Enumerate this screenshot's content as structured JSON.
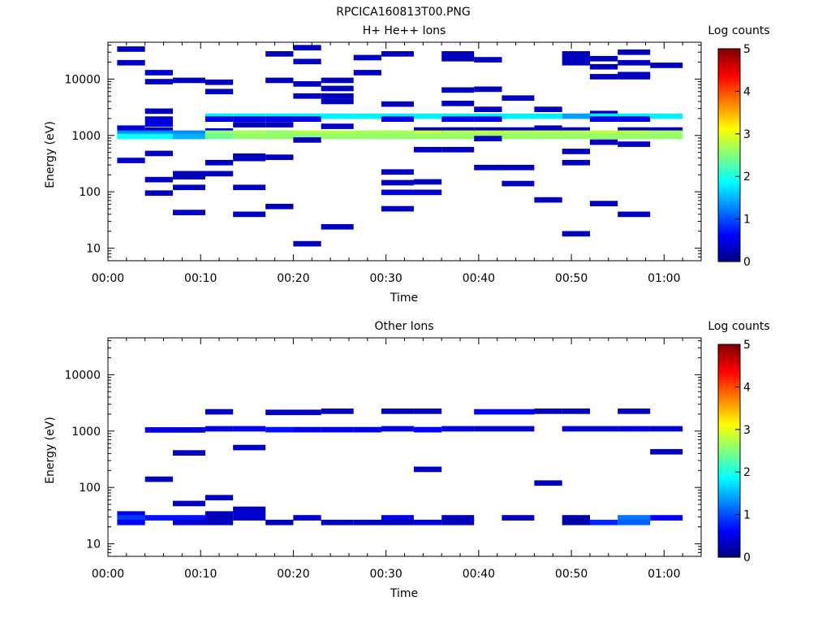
{
  "page_title": "RPCICA160813T00.PNG",
  "chart_data": [
    {
      "type": "heatmap",
      "title": "H+ He++ Ions",
      "xlabel": "Time",
      "ylabel": "Energy (eV)",
      "xlim_min": [
        0,
        64
      ],
      "ylim": [
        6,
        45000
      ],
      "yscale": "log",
      "xtick_labels": [
        "00:00",
        "00:10",
        "00:20",
        "00:30",
        "00:40",
        "00:50",
        "01:00"
      ],
      "xtick_values_min": [
        0,
        10,
        20,
        30,
        40,
        50,
        60
      ],
      "ytick_labels": [
        "10",
        "100",
        "1000",
        "10000"
      ],
      "ytick_values": [
        10,
        100,
        1000,
        10000
      ],
      "colorbar": {
        "label": "Log counts",
        "range": [
          0,
          5
        ],
        "tick_labels": [
          "0",
          "1",
          "2",
          "3",
          "4",
          "5"
        ],
        "colormap": "jet"
      },
      "cells": [
        [
          1,
          4,
          34000,
          0.3
        ],
        [
          1,
          4,
          19500,
          0.3
        ],
        [
          1,
          4,
          1350,
          0.4
        ],
        [
          1,
          4,
          1100,
          1.3
        ],
        [
          1,
          4,
          960,
          1.9
        ],
        [
          1,
          4,
          360,
          0.4
        ],
        [
          4,
          7,
          13000,
          0.4
        ],
        [
          4,
          7,
          9000,
          0.3
        ],
        [
          4,
          7,
          2700,
          0.3
        ],
        [
          4,
          7,
          1950,
          0.4
        ],
        [
          4,
          7,
          1600,
          0.5
        ],
        [
          4,
          7,
          1250,
          0.4
        ],
        [
          4,
          7,
          1100,
          1.3
        ],
        [
          4,
          7,
          960,
          1.9
        ],
        [
          4,
          7,
          480,
          0.3
        ],
        [
          4,
          7,
          165,
          0.3
        ],
        [
          4,
          7,
          95,
          0.3
        ],
        [
          7,
          10.5,
          9500,
          0.3
        ],
        [
          7,
          10.5,
          1100,
          1.3
        ],
        [
          7,
          10.5,
          960,
          1.5
        ],
        [
          7,
          10.5,
          210,
          0.3
        ],
        [
          7,
          10.5,
          185,
          0.3
        ],
        [
          7,
          10.5,
          120,
          0.3
        ],
        [
          7,
          10.5,
          43,
          0.3
        ],
        [
          10.5,
          13.5,
          8800,
          0.3
        ],
        [
          10.5,
          13.5,
          6000,
          0.3
        ],
        [
          10.5,
          13.5,
          2200,
          1.8
        ],
        [
          10.5,
          13.5,
          1950,
          0.5
        ],
        [
          10.5,
          13.5,
          1200,
          0.5
        ],
        [
          10.5,
          13.5,
          1100,
          2.6
        ],
        [
          10.5,
          13.5,
          960,
          2.4
        ],
        [
          10.5,
          13.5,
          330,
          0.3
        ],
        [
          10.5,
          13.5,
          210,
          0.3
        ],
        [
          13.5,
          17,
          2200,
          1.8
        ],
        [
          13.5,
          17,
          1950,
          0.5
        ],
        [
          13.5,
          17,
          1550,
          0.3
        ],
        [
          13.5,
          17,
          1100,
          2.7
        ],
        [
          13.5,
          17,
          960,
          2.6
        ],
        [
          13.5,
          17,
          430,
          0.3
        ],
        [
          13.5,
          17,
          390,
          0.3
        ],
        [
          13.5,
          17,
          120,
          0.3
        ],
        [
          13.5,
          17,
          40,
          0.3
        ],
        [
          17,
          20,
          9500,
          0.3
        ],
        [
          17,
          20,
          28000,
          0.3
        ],
        [
          17,
          20,
          2200,
          1.8
        ],
        [
          17,
          20,
          1950,
          0.5
        ],
        [
          17,
          20,
          1550,
          0.3
        ],
        [
          17,
          20,
          1100,
          2.6
        ],
        [
          17,
          20,
          960,
          2.6
        ],
        [
          17,
          20,
          410,
          0.3
        ],
        [
          17,
          20,
          55,
          0.3
        ],
        [
          20,
          23,
          36000,
          0.3
        ],
        [
          20,
          23,
          20500,
          0.3
        ],
        [
          20,
          23,
          8200,
          0.3
        ],
        [
          20,
          23,
          5000,
          0.3
        ],
        [
          20,
          23,
          2200,
          1.8
        ],
        [
          20,
          23,
          1950,
          0.5
        ],
        [
          20,
          23,
          1100,
          2.8
        ],
        [
          20,
          23,
          960,
          2.5
        ],
        [
          20,
          23,
          830,
          0.3
        ],
        [
          20,
          23,
          12,
          0.3
        ],
        [
          23,
          26.5,
          9500,
          0.3
        ],
        [
          23,
          26.5,
          6800,
          0.3
        ],
        [
          23,
          26.5,
          5000,
          0.3
        ],
        [
          23,
          26.5,
          4000,
          0.3
        ],
        [
          23,
          26.5,
          2200,
          1.8
        ],
        [
          23,
          26.5,
          1450,
          0.3
        ],
        [
          23,
          26.5,
          1100,
          2.8
        ],
        [
          23,
          26.5,
          960,
          2.6
        ],
        [
          23,
          26.5,
          24,
          0.3
        ],
        [
          26.5,
          29.5,
          24000,
          0.3
        ],
        [
          26.5,
          29.5,
          13000,
          0.3
        ],
        [
          26.5,
          29.5,
          2200,
          1.8
        ],
        [
          26.5,
          29.5,
          1100,
          2.7
        ],
        [
          26.5,
          29.5,
          960,
          2.6
        ],
        [
          29.5,
          33,
          28000,
          0.3
        ],
        [
          29.5,
          33,
          3600,
          0.3
        ],
        [
          29.5,
          33,
          2200,
          1.8
        ],
        [
          29.5,
          33,
          1950,
          0.5
        ],
        [
          29.5,
          33,
          1100,
          2.7
        ],
        [
          29.5,
          33,
          960,
          2.6
        ],
        [
          29.5,
          33,
          225,
          0.3
        ],
        [
          29.5,
          33,
          145,
          0.3
        ],
        [
          29.5,
          33,
          98,
          0.4
        ],
        [
          29.5,
          33,
          50,
          0.3
        ],
        [
          33,
          36,
          2200,
          1.8
        ],
        [
          33,
          36,
          1250,
          0.2
        ],
        [
          33,
          36,
          1100,
          2.9
        ],
        [
          33,
          36,
          960,
          2.6
        ],
        [
          33,
          36,
          560,
          0.3
        ],
        [
          33,
          36,
          150,
          0.3
        ],
        [
          33,
          36,
          98,
          0.4
        ],
        [
          36,
          39.5,
          28000,
          0.3
        ],
        [
          36,
          39.5,
          23000,
          0.3
        ],
        [
          36,
          39.5,
          6400,
          0.3
        ],
        [
          36,
          39.5,
          3700,
          0.3
        ],
        [
          36,
          39.5,
          2200,
          1.8
        ],
        [
          36,
          39.5,
          1950,
          0.5
        ],
        [
          36,
          39.5,
          1250,
          0.3
        ],
        [
          36,
          39.5,
          1100,
          2.8
        ],
        [
          36,
          39.5,
          960,
          2.6
        ],
        [
          36,
          39.5,
          560,
          0.3
        ],
        [
          39.5,
          42.5,
          22000,
          0.3
        ],
        [
          39.5,
          42.5,
          6600,
          0.3
        ],
        [
          39.5,
          42.5,
          2900,
          0.3
        ],
        [
          39.5,
          42.5,
          2200,
          1.8
        ],
        [
          39.5,
          42.5,
          1950,
          0.5
        ],
        [
          39.5,
          42.5,
          1250,
          0.3
        ],
        [
          39.5,
          42.5,
          1100,
          2.8
        ],
        [
          39.5,
          42.5,
          960,
          2.6
        ],
        [
          39.5,
          42.5,
          880,
          0.3
        ],
        [
          39.5,
          42.5,
          270,
          0.3
        ],
        [
          42.5,
          46,
          4600,
          0.3
        ],
        [
          42.5,
          46,
          2200,
          1.8
        ],
        [
          42.5,
          46,
          1250,
          0.3
        ],
        [
          42.5,
          46,
          1100,
          2.8
        ],
        [
          42.5,
          46,
          960,
          2.6
        ],
        [
          42.5,
          46,
          270,
          0.3
        ],
        [
          42.5,
          46,
          140,
          0.3
        ],
        [
          46,
          49,
          2900,
          0.3
        ],
        [
          46,
          49,
          2200,
          1.8
        ],
        [
          46,
          49,
          1350,
          0.3
        ],
        [
          46,
          49,
          1100,
          2.8
        ],
        [
          46,
          49,
          960,
          2.6
        ],
        [
          46,
          49,
          72,
          0.3
        ],
        [
          49,
          52,
          28000,
          0.3
        ],
        [
          49,
          52,
          24000,
          0.3
        ],
        [
          49,
          52,
          19500,
          0.3
        ],
        [
          49,
          52,
          2200,
          1.4
        ],
        [
          49,
          52,
          1250,
          0.3
        ],
        [
          49,
          52,
          1100,
          2.8
        ],
        [
          49,
          52,
          960,
          2.6
        ],
        [
          49,
          52,
          520,
          0.3
        ],
        [
          49,
          52,
          330,
          0.3
        ],
        [
          49,
          52,
          18,
          0.3
        ],
        [
          52,
          55,
          23000,
          0.3
        ],
        [
          52,
          55,
          16500,
          0.3
        ],
        [
          52,
          55,
          11000,
          0.3
        ],
        [
          52,
          55,
          2450,
          0.3
        ],
        [
          52,
          55,
          2200,
          1.8
        ],
        [
          52,
          55,
          1950,
          0.5
        ],
        [
          52,
          55,
          1100,
          2.8
        ],
        [
          52,
          55,
          960,
          2.6
        ],
        [
          52,
          55,
          760,
          0.3
        ],
        [
          52,
          55,
          62,
          0.3
        ],
        [
          55,
          58.5,
          30000,
          0.3
        ],
        [
          55,
          58.5,
          19500,
          0.3
        ],
        [
          55,
          58.5,
          12000,
          0.3
        ],
        [
          55,
          58.5,
          11000,
          0.3
        ],
        [
          55,
          58.5,
          2200,
          1.8
        ],
        [
          55,
          58.5,
          1950,
          0.5
        ],
        [
          55,
          58.5,
          1250,
          0.3
        ],
        [
          55,
          58.5,
          1100,
          2.8
        ],
        [
          55,
          58.5,
          960,
          2.6
        ],
        [
          55,
          58.5,
          700,
          0.3
        ],
        [
          55,
          58.5,
          40,
          0.3
        ],
        [
          58.5,
          62,
          17500,
          0.3
        ],
        [
          58.5,
          62,
          2200,
          1.8
        ],
        [
          58.5,
          62,
          1250,
          0.3
        ],
        [
          58.5,
          62,
          1100,
          2.7
        ],
        [
          58.5,
          62,
          960,
          2.6
        ]
      ]
    },
    {
      "type": "heatmap",
      "title": "Other Ions",
      "xlabel": "Time",
      "ylabel": "Energy (eV)",
      "xlim_min": [
        0,
        64
      ],
      "ylim": [
        6,
        45000
      ],
      "yscale": "log",
      "xtick_labels": [
        "00:00",
        "00:10",
        "00:20",
        "00:30",
        "00:40",
        "00:50",
        "01:00"
      ],
      "xtick_values_min": [
        0,
        10,
        20,
        30,
        40,
        50,
        60
      ],
      "ytick_labels": [
        "10",
        "100",
        "1000",
        "10000"
      ],
      "ytick_values": [
        10,
        100,
        1000,
        10000
      ],
      "colorbar": {
        "label": "Log counts",
        "range": [
          0,
          5
        ],
        "tick_labels": [
          "0",
          "1",
          "2",
          "3",
          "4",
          "5"
        ],
        "colormap": "jet"
      },
      "cells": [
        [
          1,
          4,
          34,
          0.5
        ],
        [
          1,
          4,
          29,
          0.9
        ],
        [
          1,
          4,
          24,
          0.6
        ],
        [
          4,
          7,
          1050,
          0.5
        ],
        [
          4,
          7,
          140,
          0.3
        ],
        [
          4,
          7,
          29,
          0.7
        ],
        [
          7,
          10.5,
          1050,
          0.4
        ],
        [
          7,
          10.5,
          410,
          0.3
        ],
        [
          7,
          10.5,
          52,
          0.3
        ],
        [
          7,
          10.5,
          29,
          0.7
        ],
        [
          7,
          10.5,
          24,
          0.4
        ],
        [
          10.5,
          13.5,
          2200,
          0.3
        ],
        [
          10.5,
          13.5,
          1100,
          0.5
        ],
        [
          10.5,
          13.5,
          66,
          0.3
        ],
        [
          10.5,
          13.5,
          34,
          0.3
        ],
        [
          10.5,
          13.5,
          29,
          0.3
        ],
        [
          10.5,
          13.5,
          24,
          0.3
        ],
        [
          13.5,
          17,
          1100,
          0.6
        ],
        [
          13.5,
          17,
          510,
          0.3
        ],
        [
          13.5,
          17,
          41,
          0.3
        ],
        [
          13.5,
          17,
          35,
          0.4
        ],
        [
          13.5,
          17,
          29,
          0.4
        ],
        [
          17,
          20,
          2150,
          0.3
        ],
        [
          17,
          20,
          1060,
          0.7
        ],
        [
          17,
          20,
          24,
          0.3
        ],
        [
          20,
          23,
          2150,
          0.3
        ],
        [
          20,
          23,
          1060,
          0.5
        ],
        [
          20,
          23,
          29,
          0.4
        ],
        [
          23,
          26.5,
          2250,
          0.3
        ],
        [
          23,
          26.5,
          1060,
          0.5
        ],
        [
          23,
          26.5,
          24,
          0.3
        ],
        [
          26.5,
          29.5,
          1060,
          0.5
        ],
        [
          26.5,
          29.5,
          24,
          0.3
        ],
        [
          29.5,
          33,
          2250,
          0.3
        ],
        [
          29.5,
          33,
          1100,
          0.5
        ],
        [
          29.5,
          33,
          29,
          0.5
        ],
        [
          29.5,
          33,
          24,
          0.3
        ],
        [
          33,
          36,
          2250,
          0.3
        ],
        [
          33,
          36,
          1060,
          0.6
        ],
        [
          33,
          36,
          210,
          0.3
        ],
        [
          33,
          36,
          24,
          0.4
        ],
        [
          36,
          39.5,
          1100,
          0.5
        ],
        [
          36,
          39.5,
          29,
          0.3
        ],
        [
          36,
          39.5,
          24,
          0.3
        ],
        [
          39.5,
          42.5,
          2200,
          0.6
        ],
        [
          39.5,
          42.5,
          1100,
          0.4
        ],
        [
          42.5,
          46,
          2200,
          0.6
        ],
        [
          42.5,
          46,
          1100,
          0.4
        ],
        [
          42.5,
          46,
          29,
          0.3
        ],
        [
          46,
          49,
          2250,
          0.3
        ],
        [
          46,
          49,
          120,
          0.3
        ],
        [
          49,
          52,
          2250,
          0.3
        ],
        [
          49,
          52,
          1100,
          0.4
        ],
        [
          49,
          52,
          29,
          0.2
        ],
        [
          49,
          52,
          24,
          0.2
        ],
        [
          52,
          55,
          1100,
          0.4
        ],
        [
          52,
          55,
          24,
          0.8
        ],
        [
          55,
          58.5,
          2250,
          0.3
        ],
        [
          55,
          58.5,
          1100,
          0.5
        ],
        [
          55,
          58.5,
          29,
          1.2
        ],
        [
          55,
          58.5,
          24,
          1.1
        ],
        [
          58.5,
          62,
          1100,
          0.4
        ],
        [
          58.5,
          62,
          430,
          0.3
        ],
        [
          58.5,
          62,
          29,
          0.6
        ]
      ]
    }
  ]
}
